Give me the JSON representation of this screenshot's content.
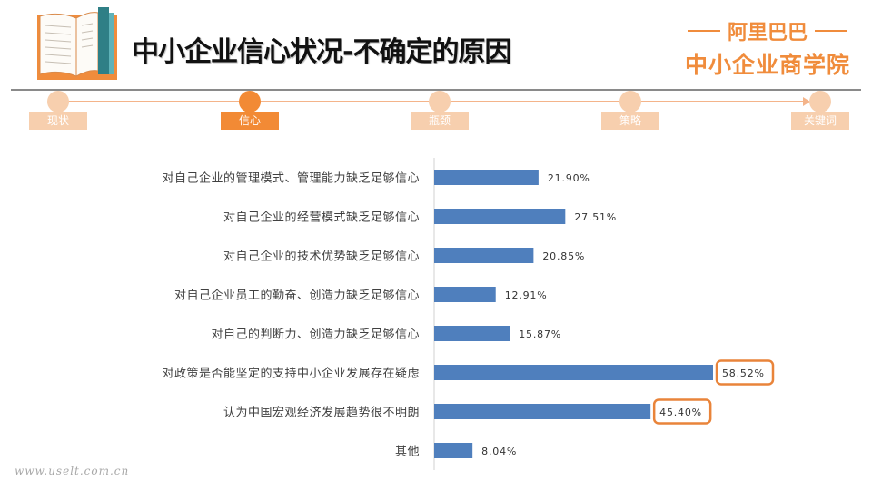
{
  "header": {
    "title": "中小企业信心状况-不确定的原因",
    "brand_top": "阿里巴巴",
    "brand_main": "中小企业商学院",
    "book_icon": "open-book-icon"
  },
  "nav": {
    "tabs": [
      {
        "label": "现状",
        "active": false
      },
      {
        "label": "信心",
        "active": true
      },
      {
        "label": "瓶颈",
        "active": false
      },
      {
        "label": "策略",
        "active": false
      },
      {
        "label": "关键词",
        "active": false
      }
    ]
  },
  "colors": {
    "accent": "#f28a35",
    "accent_light": "#f7cfae",
    "bar": "#4f7fbd",
    "highlight_border": "#e9843a"
  },
  "chart_data": {
    "type": "bar",
    "orientation": "horizontal",
    "categories": [
      "对自己企业的管理模式、管理能力缺乏足够信心",
      "对自己企业的经营模式缺乏足够信心",
      "对自己企业的技术优势缺乏足够信心",
      "对自己企业员工的勤奋、创造力缺乏足够信心",
      "对自己的判断力、创造力缺乏足够信心",
      "对政策是否能坚定的支持中小企业发展存在疑虑",
      "认为中国宏观经济发展趋势很不明朗",
      "其他"
    ],
    "values": [
      21.9,
      27.51,
      20.85,
      12.91,
      15.87,
      58.52,
      45.4,
      8.04
    ],
    "labels": [
      "21.90%",
      "27.51%",
      "20.85%",
      "12.91%",
      "15.87%",
      "58.52%",
      "45.40%",
      "8.04%"
    ],
    "highlighted": [
      5,
      6
    ],
    "xlim": [
      0,
      60
    ],
    "grid": false
  },
  "watermark": "www.uselt.com.cn"
}
